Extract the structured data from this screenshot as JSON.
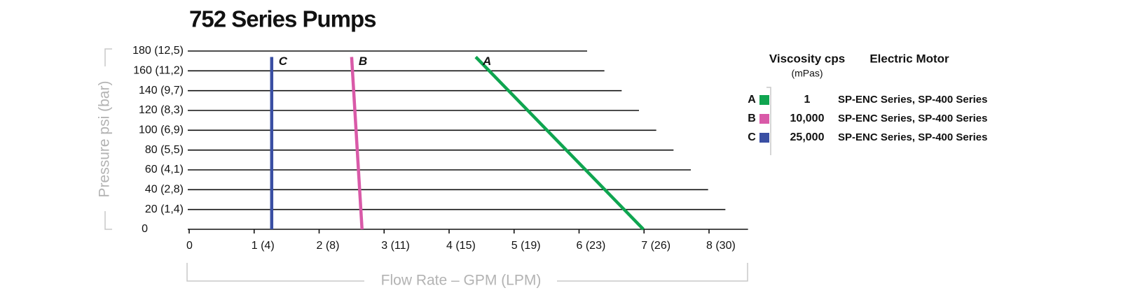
{
  "chart_data": {
    "type": "line",
    "title": "752 Series Pumps",
    "x_label": "Flow Rate – GPM (LPM)",
    "y_label": "Pressure psi (bar)",
    "xlim": [
      0,
      8.6
    ],
    "ylim": [
      0,
      180
    ],
    "xticks": [
      0,
      {
        "value": 1,
        "label": "1 (4)"
      },
      {
        "value": 2,
        "label": "2 (8)"
      },
      {
        "value": 3,
        "label": "3 (11)"
      },
      {
        "value": 4,
        "label": "4 (15)"
      },
      {
        "value": 5,
        "label": "5 (19)"
      },
      {
        "value": 6,
        "label": "6 (23)"
      },
      {
        "value": 7,
        "label": "7 (26)"
      },
      {
        "value": 8,
        "label": "8 (30)"
      }
    ],
    "yticks": [
      0,
      {
        "value": 20,
        "label": "20  (1,4)"
      },
      {
        "value": 40,
        "label": "40  (2,8)"
      },
      {
        "value": 60,
        "label": "60  (4,1)"
      },
      {
        "value": 80,
        "label": "80  (5,5)"
      },
      {
        "value": 100,
        "label": "100  (6,9)"
      },
      {
        "value": 120,
        "label": "120  (8,3)"
      },
      {
        "value": 140,
        "label": "140  (9,7)"
      },
      {
        "value": 160,
        "label": "160  (11,2)"
      },
      {
        "value": 180,
        "label": "180  (12,5)"
      }
    ],
    "grid": true,
    "legend": {
      "header_viscosity": "Viscosity cps",
      "header_unit": "(mPas)",
      "header_motor": "Electric Motor"
    },
    "series": [
      {
        "name": "A",
        "color": "#0fa550",
        "x": [
          6.99,
          4.41
        ],
        "values": [
          0,
          174
        ],
        "viscosity": "1",
        "motor": "SP-ENC Series, SP-400 Series"
      },
      {
        "name": "B",
        "color": "#d95aa8",
        "x": [
          2.66,
          2.5
        ],
        "values": [
          0,
          174
        ],
        "viscosity": "10,000",
        "motor": "SP-ENC Series, SP-400 Series"
      },
      {
        "name": "C",
        "color": "#3a4fa3",
        "x": [
          1.27,
          1.27
        ],
        "values": [
          0,
          174
        ],
        "viscosity": "25,000",
        "motor": "SP-ENC Series, SP-400 Series"
      }
    ]
  }
}
